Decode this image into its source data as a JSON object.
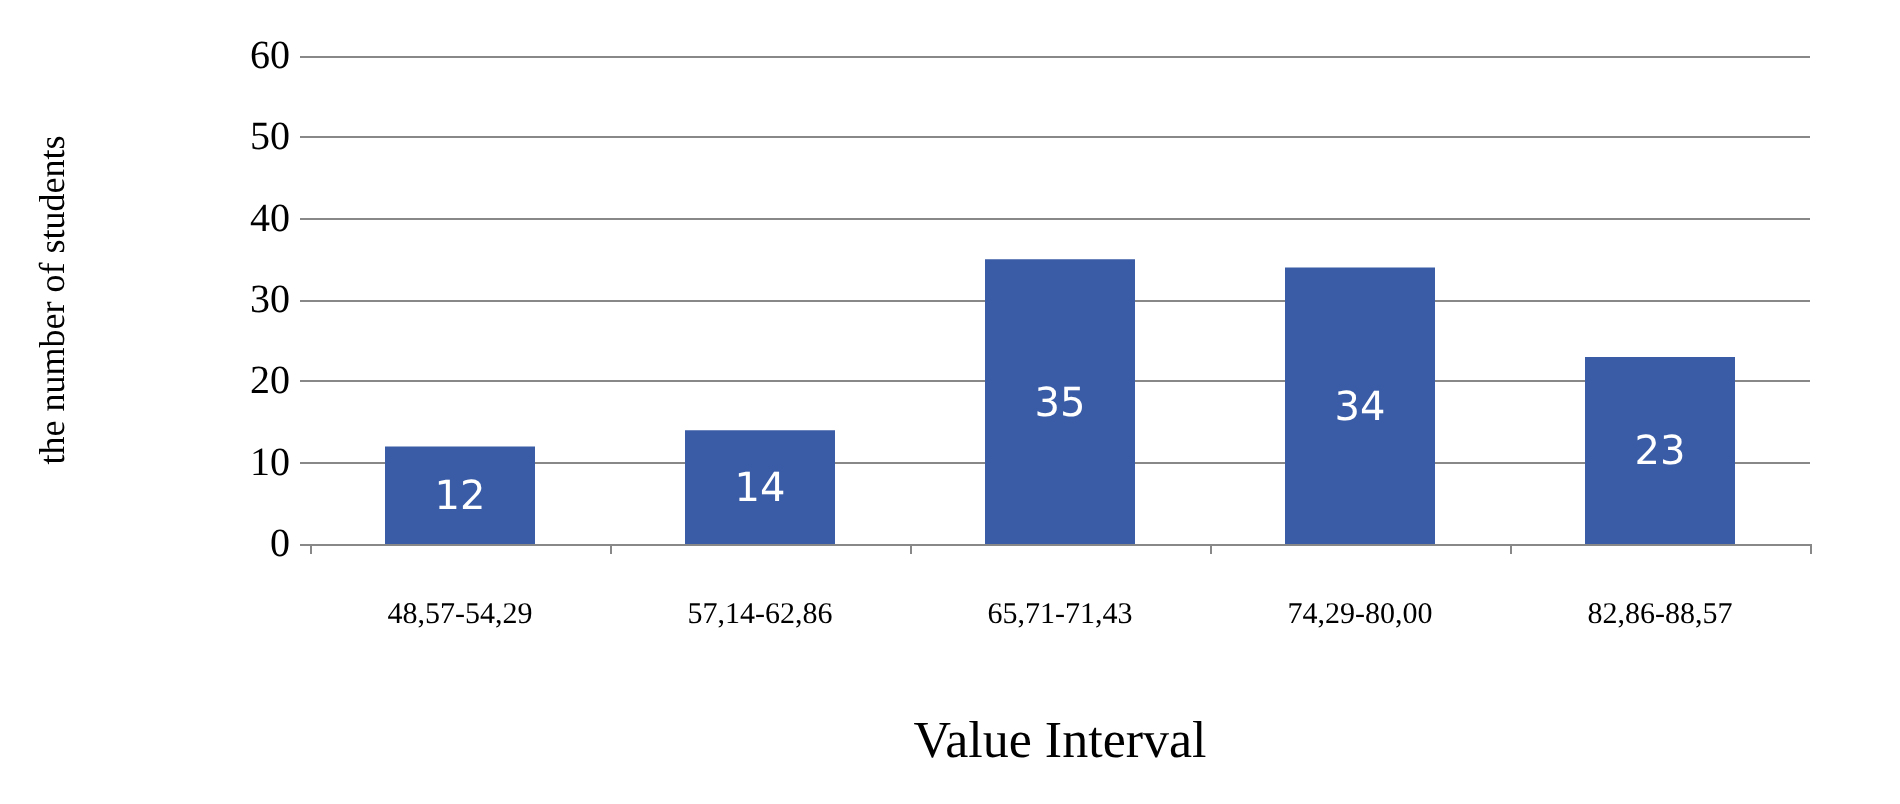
{
  "chart_data": {
    "type": "bar",
    "xlabel": "Value Interval",
    "ylabel": "the number of students",
    "categories": [
      "48,57-54,29",
      "57,14-62,86",
      "65,71-71,43",
      "74,29-80,00",
      "82,86-88,57"
    ],
    "values": [
      12,
      14,
      35,
      34,
      23
    ],
    "color": "#3a5ca6",
    "ylim": [
      0,
      60
    ],
    "yticks": [
      0,
      10,
      20,
      30,
      40,
      50,
      60
    ],
    "grid": "y",
    "data_labels": true
  }
}
